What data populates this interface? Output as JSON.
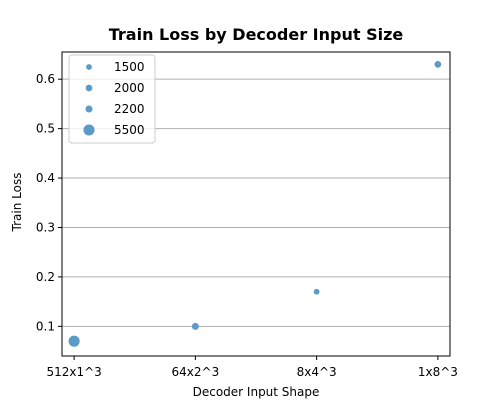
{
  "chart_data": {
    "type": "scatter",
    "title": "Train Loss by Decoder Input Size",
    "xlabel": "Decoder Input Shape",
    "ylabel": "Train Loss",
    "categories": [
      "512x1^3",
      "64x2^3",
      "8x4^3",
      "1x8^3"
    ],
    "points": [
      {
        "x": "512x1^3",
        "y": 0.07,
        "size": 5500
      },
      {
        "x": "64x2^3",
        "y": 0.1,
        "size": 2200
      },
      {
        "x": "8x4^3",
        "y": 0.17,
        "size": 1500
      },
      {
        "x": "1x8^3",
        "y": 0.63,
        "size": 2000
      }
    ],
    "ylim": [
      0.04,
      0.655
    ],
    "yticks": [
      0.1,
      0.2,
      0.3,
      0.4,
      0.5,
      0.6
    ],
    "ytick_labels": [
      "0.1",
      "0.2",
      "0.3",
      "0.4",
      "0.5",
      "0.6"
    ],
    "grid": "y-major",
    "legend": {
      "placement": "upper-left",
      "entries": [
        {
          "label": "1500",
          "size": 1500
        },
        {
          "label": "2000",
          "size": 2000
        },
        {
          "label": "2200",
          "size": 2200
        },
        {
          "label": "5500",
          "size": 5500
        }
      ]
    },
    "marker_color": "#5b9bc8",
    "grid_color": "#b0b0b0"
  }
}
